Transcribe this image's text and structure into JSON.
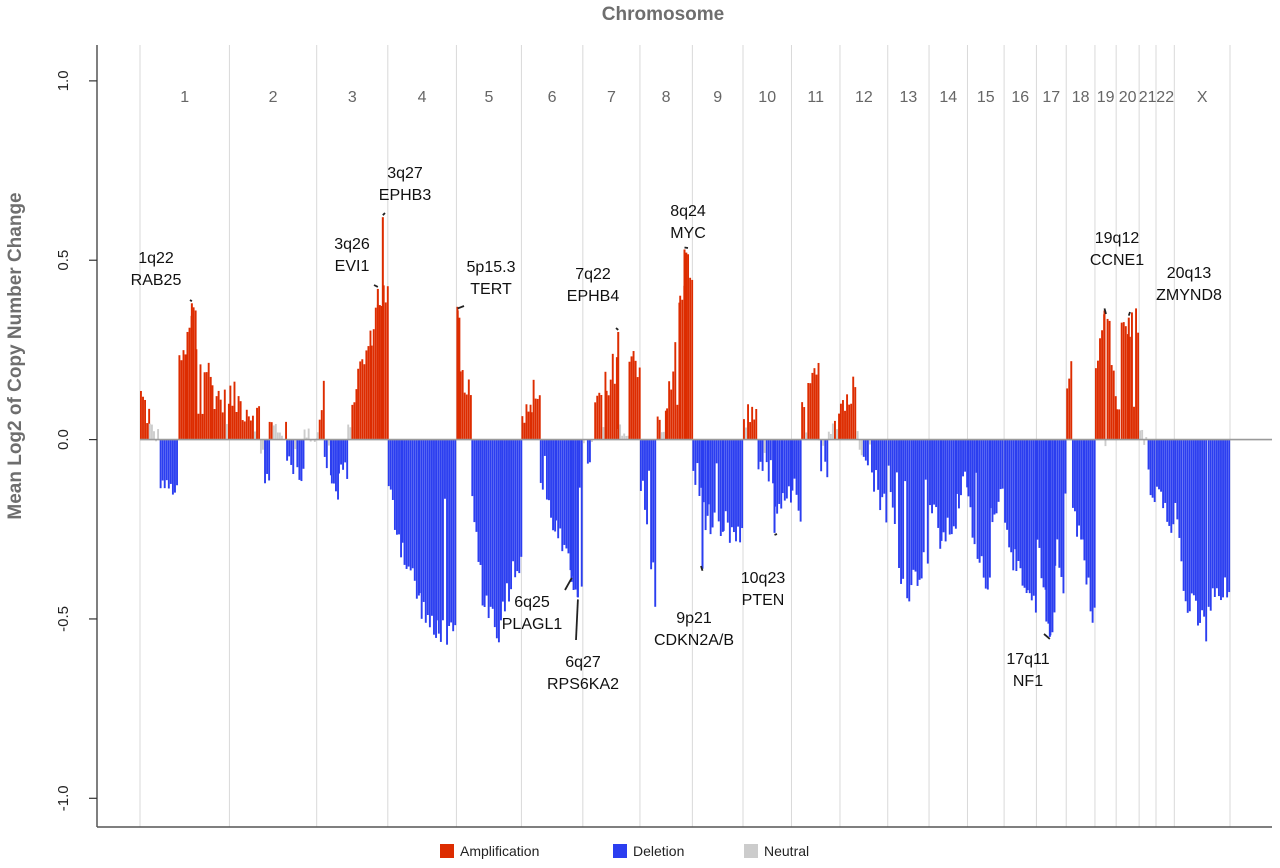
{
  "chart_data": {
    "type": "bar",
    "title": "Chromosome",
    "ylabel": "Mean Log2 of Copy Number Change",
    "ylim": [
      -1.08,
      1.1
    ],
    "yticks": [
      "1.0",
      "0.5",
      "0.0",
      "-0.5",
      "-1.0"
    ],
    "ytick_values": [
      1.0,
      0.5,
      0.0,
      -0.5,
      -1.0
    ],
    "grid": "vertical chromosome separators",
    "legend_position": "bottom",
    "colors": {
      "amplification": "#dd2c00",
      "deletion": "#2b3ef0",
      "neutral": "#cccccc",
      "baseline": "#9a9a9a",
      "separator": "#d9d9d9"
    },
    "legend": [
      {
        "label": "Amplification",
        "color": "#dd2c00"
      },
      {
        "label": "Deletion",
        "color": "#2b3ef0"
      },
      {
        "label": "Neutral",
        "color": "#cccccc"
      }
    ],
    "chromosomes": [
      "1",
      "2",
      "3",
      "4",
      "5",
      "6",
      "7",
      "8",
      "9",
      "10",
      "11",
      "12",
      "13",
      "14",
      "15",
      "16",
      "17",
      "18",
      "19",
      "20",
      "21",
      "22",
      "X"
    ],
    "chromosome_lengths": [
      249,
      243,
      198,
      191,
      181,
      171,
      159,
      146,
      141,
      135,
      135,
      133,
      115,
      107,
      102,
      90,
      83,
      80,
      59,
      64,
      47,
      51,
      155
    ],
    "segments": [
      {
        "chrom": "1",
        "from": 0.0,
        "to": 0.1,
        "start": 0.12,
        "end": 0.06,
        "noise": 0.05
      },
      {
        "chrom": "1",
        "from": 0.1,
        "to": 0.22,
        "start": 0.03,
        "end": 0.0,
        "noise": 0.03
      },
      {
        "chrom": "1",
        "from": 0.22,
        "to": 0.43,
        "start": -0.12,
        "end": -0.15,
        "noise": 0.02
      },
      {
        "chrom": "1",
        "from": 0.43,
        "to": 0.52,
        "start": 0.22,
        "end": 0.24,
        "noise": 0.03
      },
      {
        "chrom": "1",
        "from": 0.52,
        "to": 0.62,
        "start": 0.28,
        "end": 0.38,
        "noise": 0.05
      },
      {
        "chrom": "1",
        "from": 0.62,
        "to": 0.8,
        "start": 0.26,
        "end": 0.16,
        "noise": 0.05
      },
      {
        "chrom": "1",
        "from": 0.8,
        "to": 1.0,
        "start": 0.14,
        "end": 0.08,
        "noise": 0.05
      },
      {
        "chrom": "2",
        "from": 0.0,
        "to": 0.35,
        "start": 0.12,
        "end": 0.06,
        "noise": 0.05
      },
      {
        "chrom": "2",
        "from": 0.35,
        "to": 0.45,
        "start": -0.05,
        "end": -0.14,
        "noise": 0.06
      },
      {
        "chrom": "2",
        "from": 0.45,
        "to": 0.65,
        "start": 0.04,
        "end": 0.02,
        "noise": 0.03
      },
      {
        "chrom": "2",
        "from": 0.65,
        "to": 0.85,
        "start": -0.06,
        "end": -0.1,
        "noise": 0.03
      },
      {
        "chrom": "2",
        "from": 0.85,
        "to": 1.0,
        "start": 0.02,
        "end": 0.0,
        "noise": 0.02
      },
      {
        "chrom": "3",
        "from": 0.0,
        "to": 0.1,
        "start": 0.05,
        "end": 0.15,
        "noise": 0.06
      },
      {
        "chrom": "3",
        "from": 0.1,
        "to": 0.2,
        "start": -0.06,
        "end": -0.08,
        "noise": 0.03
      },
      {
        "chrom": "3",
        "from": 0.2,
        "to": 0.3,
        "start": -0.12,
        "end": -0.17,
        "noise": 0.03
      },
      {
        "chrom": "3",
        "from": 0.3,
        "to": 0.43,
        "start": -0.1,
        "end": -0.08,
        "noise": 0.03
      },
      {
        "chrom": "3",
        "from": 0.43,
        "to": 0.57,
        "start": 0.05,
        "end": 0.18,
        "noise": 0.04
      },
      {
        "chrom": "3",
        "from": 0.57,
        "to": 0.76,
        "start": 0.18,
        "end": 0.28,
        "noise": 0.04
      },
      {
        "chrom": "3",
        "from": 0.76,
        "to": 0.9,
        "start": 0.3,
        "end": 0.42,
        "noise": 0.04
      },
      {
        "chrom": "3",
        "from": 0.9,
        "to": 1.0,
        "start": 0.4,
        "end": 0.4,
        "noise": 0.05
      },
      {
        "chrom": "4",
        "from": 0.0,
        "to": 0.2,
        "start": -0.15,
        "end": -0.3,
        "noise": 0.05
      },
      {
        "chrom": "4",
        "from": 0.2,
        "to": 0.45,
        "start": -0.3,
        "end": -0.45,
        "noise": 0.05
      },
      {
        "chrom": "4",
        "from": 0.45,
        "to": 0.7,
        "start": -0.45,
        "end": -0.56,
        "noise": 0.04
      },
      {
        "chrom": "4",
        "from": 0.7,
        "to": 1.0,
        "start": -0.52,
        "end": -0.56,
        "noise": 0.04
      },
      {
        "chrom": "5",
        "from": 0.0,
        "to": 0.05,
        "start": 0.36,
        "end": 0.3,
        "noise": 0.03
      },
      {
        "chrom": "5",
        "from": 0.05,
        "to": 0.23,
        "start": 0.18,
        "end": 0.12,
        "noise": 0.03
      },
      {
        "chrom": "5",
        "from": 0.23,
        "to": 0.45,
        "start": -0.2,
        "end": -0.5,
        "noise": 0.05
      },
      {
        "chrom": "5",
        "from": 0.45,
        "to": 0.7,
        "start": -0.45,
        "end": -0.55,
        "noise": 0.05
      },
      {
        "chrom": "5",
        "from": 0.7,
        "to": 1.0,
        "start": -0.45,
        "end": -0.3,
        "noise": 0.05
      },
      {
        "chrom": "6",
        "from": 0.0,
        "to": 0.15,
        "start": 0.07,
        "end": 0.08,
        "noise": 0.03
      },
      {
        "chrom": "6",
        "from": 0.15,
        "to": 0.3,
        "start": 0.12,
        "end": 0.14,
        "noise": 0.05
      },
      {
        "chrom": "6",
        "from": 0.3,
        "to": 0.55,
        "start": -0.12,
        "end": -0.25,
        "noise": 0.04
      },
      {
        "chrom": "6",
        "from": 0.55,
        "to": 0.8,
        "start": -0.25,
        "end": -0.38,
        "noise": 0.04
      },
      {
        "chrom": "6",
        "from": 0.8,
        "to": 1.0,
        "start": -0.38,
        "end": -0.44,
        "noise": 0.04
      },
      {
        "chrom": "7",
        "from": 0.0,
        "to": 0.2,
        "start": -0.05,
        "end": -0.02,
        "noise": 0.05
      },
      {
        "chrom": "7",
        "from": 0.2,
        "to": 0.4,
        "start": 0.08,
        "end": 0.14,
        "noise": 0.06
      },
      {
        "chrom": "7",
        "from": 0.4,
        "to": 0.6,
        "start": 0.1,
        "end": 0.26,
        "noise": 0.06
      },
      {
        "chrom": "7",
        "from": 0.6,
        "to": 0.8,
        "start": 0.04,
        "end": 0.02,
        "noise": 0.04
      },
      {
        "chrom": "7",
        "from": 0.8,
        "to": 1.0,
        "start": 0.26,
        "end": 0.2,
        "noise": 0.05
      },
      {
        "chrom": "8",
        "from": 0.0,
        "to": 0.32,
        "start": -0.12,
        "end": -0.48,
        "noise": 0.06
      },
      {
        "chrom": "8",
        "from": 0.32,
        "to": 0.5,
        "start": 0.04,
        "end": 0.06,
        "noise": 0.04
      },
      {
        "chrom": "8",
        "from": 0.5,
        "to": 0.75,
        "start": 0.08,
        "end": 0.36,
        "noise": 0.05
      },
      {
        "chrom": "8",
        "from": 0.75,
        "to": 0.9,
        "start": 0.38,
        "end": 0.52,
        "noise": 0.04
      },
      {
        "chrom": "8",
        "from": 0.9,
        "to": 1.0,
        "start": 0.5,
        "end": 0.42,
        "noise": 0.04
      },
      {
        "chrom": "9",
        "from": 0.0,
        "to": 0.3,
        "start": -0.08,
        "end": -0.22,
        "noise": 0.06
      },
      {
        "chrom": "9",
        "from": 0.3,
        "to": 0.6,
        "start": -0.22,
        "end": -0.3,
        "noise": 0.05
      },
      {
        "chrom": "9",
        "from": 0.6,
        "to": 1.0,
        "start": -0.24,
        "end": -0.3,
        "noise": 0.05
      },
      {
        "chrom": "10",
        "from": 0.0,
        "to": 0.3,
        "start": 0.06,
        "end": 0.08,
        "noise": 0.04
      },
      {
        "chrom": "10",
        "from": 0.3,
        "to": 0.6,
        "start": -0.05,
        "end": -0.1,
        "noise": 0.04
      },
      {
        "chrom": "10",
        "from": 0.6,
        "to": 0.8,
        "start": -0.15,
        "end": -0.25,
        "noise": 0.05
      },
      {
        "chrom": "10",
        "from": 0.8,
        "to": 1.0,
        "start": -0.18,
        "end": -0.15,
        "noise": 0.04
      },
      {
        "chrom": "11",
        "from": 0.0,
        "to": 0.2,
        "start": -0.1,
        "end": -0.28,
        "noise": 0.05
      },
      {
        "chrom": "11",
        "from": 0.2,
        "to": 0.55,
        "start": 0.06,
        "end": 0.2,
        "noise": 0.05
      },
      {
        "chrom": "11",
        "from": 0.55,
        "to": 0.75,
        "start": -0.04,
        "end": -0.08,
        "noise": 0.04
      },
      {
        "chrom": "11",
        "from": 0.75,
        "to": 1.0,
        "start": 0.04,
        "end": 0.08,
        "noise": 0.04
      },
      {
        "chrom": "12",
        "from": 0.0,
        "to": 0.35,
        "start": 0.1,
        "end": 0.14,
        "noise": 0.06
      },
      {
        "chrom": "12",
        "from": 0.35,
        "to": 0.65,
        "start": 0.02,
        "end": -0.04,
        "noise": 0.05
      },
      {
        "chrom": "12",
        "from": 0.65,
        "to": 1.0,
        "start": -0.1,
        "end": -0.2,
        "noise": 0.05
      },
      {
        "chrom": "13",
        "from": 0.0,
        "to": 0.25,
        "start": -0.1,
        "end": -0.36,
        "noise": 0.04
      },
      {
        "chrom": "13",
        "from": 0.25,
        "to": 0.55,
        "start": -0.36,
        "end": -0.44,
        "noise": 0.03
      },
      {
        "chrom": "13",
        "from": 0.55,
        "to": 1.0,
        "start": -0.4,
        "end": -0.32,
        "noise": 0.04
      },
      {
        "chrom": "14",
        "from": 0.0,
        "to": 0.3,
        "start": -0.18,
        "end": -0.28,
        "noise": 0.05
      },
      {
        "chrom": "14",
        "from": 0.3,
        "to": 0.7,
        "start": -0.28,
        "end": -0.22,
        "noise": 0.04
      },
      {
        "chrom": "14",
        "from": 0.7,
        "to": 1.0,
        "start": -0.18,
        "end": -0.1,
        "noise": 0.04
      },
      {
        "chrom": "15",
        "from": 0.0,
        "to": 0.25,
        "start": -0.18,
        "end": -0.34,
        "noise": 0.04
      },
      {
        "chrom": "15",
        "from": 0.25,
        "to": 0.6,
        "start": -0.34,
        "end": -0.4,
        "noise": 0.04
      },
      {
        "chrom": "15",
        "from": 0.6,
        "to": 1.0,
        "start": -0.2,
        "end": -0.14,
        "noise": 0.04
      },
      {
        "chrom": "16",
        "from": 0.0,
        "to": 0.35,
        "start": -0.2,
        "end": -0.36,
        "noise": 0.05
      },
      {
        "chrom": "16",
        "from": 0.35,
        "to": 0.7,
        "start": -0.36,
        "end": -0.46,
        "noise": 0.04
      },
      {
        "chrom": "16",
        "from": 0.7,
        "to": 1.0,
        "start": -0.42,
        "end": -0.5,
        "noise": 0.04
      },
      {
        "chrom": "17",
        "from": 0.0,
        "to": 0.3,
        "start": -0.3,
        "end": -0.48,
        "noise": 0.05
      },
      {
        "chrom": "17",
        "from": 0.3,
        "to": 0.6,
        "start": -0.5,
        "end": -0.52,
        "noise": 0.04
      },
      {
        "chrom": "17",
        "from": 0.6,
        "to": 1.0,
        "start": -0.3,
        "end": -0.48,
        "noise": 0.06
      },
      {
        "chrom": "18",
        "from": 0.0,
        "to": 0.2,
        "start": 0.16,
        "end": 0.24,
        "noise": 0.03
      },
      {
        "chrom": "18",
        "from": 0.2,
        "to": 0.6,
        "start": -0.2,
        "end": -0.3,
        "noise": 0.04
      },
      {
        "chrom": "18",
        "from": 0.6,
        "to": 1.0,
        "start": -0.35,
        "end": -0.52,
        "noise": 0.04
      },
      {
        "chrom": "19",
        "from": 0.0,
        "to": 0.45,
        "start": 0.2,
        "end": 0.36,
        "noise": 0.04
      },
      {
        "chrom": "19",
        "from": 0.45,
        "to": 0.55,
        "start": -0.02,
        "end": -0.04,
        "noise": 0.01
      },
      {
        "chrom": "19",
        "from": 0.55,
        "to": 1.0,
        "start": 0.34,
        "end": 0.1,
        "noise": 0.05
      },
      {
        "chrom": "20",
        "from": 0.0,
        "to": 0.2,
        "start": 0.08,
        "end": 0.12,
        "noise": 0.04
      },
      {
        "chrom": "20",
        "from": 0.2,
        "to": 1.0,
        "start": 0.3,
        "end": 0.34,
        "noise": 0.04
      },
      {
        "chrom": "21",
        "from": 0.0,
        "to": 0.5,
        "start": 0.02,
        "end": -0.02,
        "noise": 0.02
      },
      {
        "chrom": "21",
        "from": 0.5,
        "to": 1.0,
        "start": -0.1,
        "end": -0.22,
        "noise": 0.04
      },
      {
        "chrom": "22",
        "from": 0.0,
        "to": 1.0,
        "start": -0.1,
        "end": -0.26,
        "noise": 0.04
      },
      {
        "chrom": "X",
        "from": 0.0,
        "to": 0.15,
        "start": -0.2,
        "end": -0.36,
        "noise": 0.05
      },
      {
        "chrom": "X",
        "from": 0.15,
        "to": 0.6,
        "start": -0.44,
        "end": -0.54,
        "noise": 0.05
      },
      {
        "chrom": "X",
        "from": 0.6,
        "to": 1.0,
        "start": -0.46,
        "end": -0.42,
        "noise": 0.05
      }
    ],
    "annotations": [
      {
        "locus": "1q22",
        "gene": "RAB25",
        "chrom": "1",
        "pos": 0.58,
        "value": 0.38
      },
      {
        "locus": "3q26",
        "gene": "EVI1",
        "chrom": "3",
        "pos": 0.86,
        "value": 0.42
      },
      {
        "locus": "3q27",
        "gene": "EPHB3",
        "chrom": "3",
        "pos": 0.93,
        "value": 0.62
      },
      {
        "locus": "5p15.3",
        "gene": "TERT",
        "chrom": "5",
        "pos": 0.02,
        "value": 0.36
      },
      {
        "locus": "7q22",
        "gene": "EPHB4",
        "chrom": "7",
        "pos": 0.62,
        "value": 0.3
      },
      {
        "locus": "8q24",
        "gene": "MYC",
        "chrom": "8",
        "pos": 0.85,
        "value": 0.53
      },
      {
        "locus": "19q12",
        "gene": "CCNE1",
        "chrom": "19",
        "pos": 0.45,
        "value": 0.36
      },
      {
        "locus": "20q13",
        "gene": "ZMYND8",
        "chrom": "20",
        "pos": 0.55,
        "value": 0.34
      },
      {
        "locus": "6q25",
        "gene": "PLAGL1",
        "chrom": "6",
        "pos": 0.82,
        "value": -0.38
      },
      {
        "locus": "6q27",
        "gene": "RPS6KA2",
        "chrom": "6",
        "pos": 0.92,
        "value": -0.44
      },
      {
        "locus": "9p21",
        "gene": "CDKN2A/B",
        "chrom": "9",
        "pos": 0.2,
        "value": -0.36
      },
      {
        "locus": "10q23",
        "gene": "PTEN",
        "chrom": "10",
        "pos": 0.65,
        "value": -0.26
      },
      {
        "locus": "17q11",
        "gene": "NF1",
        "chrom": "17",
        "pos": 0.45,
        "value": -0.55
      }
    ]
  }
}
